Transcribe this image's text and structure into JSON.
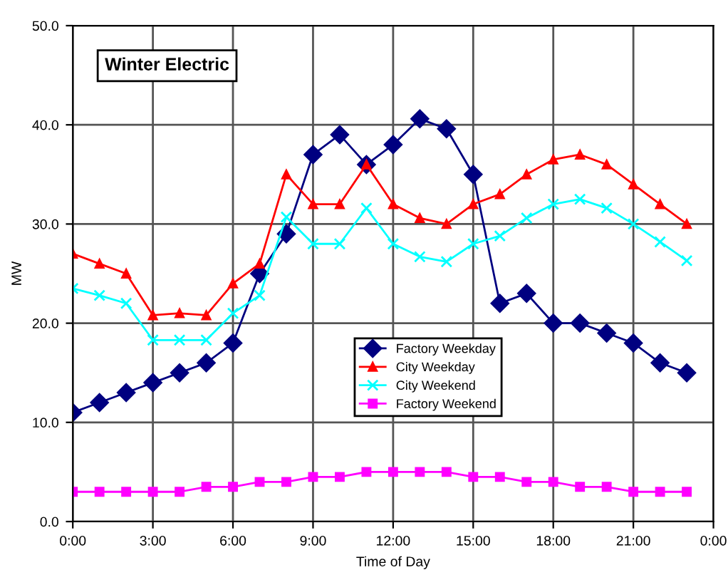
{
  "chart_data": {
    "type": "line",
    "title": "Winter Electric",
    "xlabel": "Time of Day",
    "ylabel": "MW",
    "x": [
      0,
      1,
      2,
      3,
      4,
      5,
      6,
      7,
      8,
      9,
      10,
      11,
      12,
      13,
      14,
      15,
      16,
      17,
      18,
      19,
      20,
      21,
      22,
      23
    ],
    "series": [
      {
        "name": "Factory Weekday",
        "color": "#000080",
        "marker": "diamond",
        "values": [
          11,
          12,
          13,
          14,
          15,
          16,
          18,
          25,
          29,
          37,
          39,
          36,
          38,
          40.6,
          39.6,
          35,
          22,
          23,
          20,
          20,
          19,
          18,
          16,
          15
        ]
      },
      {
        "name": "City Weekday",
        "color": "#ff0000",
        "marker": "triangle",
        "values": [
          27,
          26,
          25,
          20.8,
          21,
          20.8,
          24,
          26,
          35,
          32,
          32,
          36,
          32,
          30.6,
          30,
          32,
          33,
          35,
          36.5,
          37,
          36,
          34,
          32,
          30
        ]
      },
      {
        "name": "City Weekend",
        "color": "#00ffff",
        "marker": "cross",
        "values": [
          23.5,
          22.8,
          22,
          18.3,
          18.3,
          18.3,
          21,
          22.8,
          30.7,
          28,
          28,
          31.6,
          28,
          26.7,
          26.2,
          28,
          28.8,
          30.6,
          32,
          32.5,
          31.6,
          30,
          28.2,
          26.3
        ]
      },
      {
        "name": "Factory Weekend",
        "color": "#ff00ff",
        "marker": "square",
        "values": [
          3,
          3,
          3,
          3,
          3,
          3.5,
          3.5,
          4,
          4,
          4.5,
          4.5,
          5,
          5,
          5,
          5,
          4.5,
          4.5,
          4,
          4,
          3.5,
          3.5,
          3,
          3,
          3
        ]
      }
    ],
    "xlim": [
      0,
      24
    ],
    "xticks": [
      {
        "value": 0,
        "label": "0:00"
      },
      {
        "value": 3,
        "label": "3:00"
      },
      {
        "value": 6,
        "label": "6:00"
      },
      {
        "value": 9,
        "label": "9:00"
      },
      {
        "value": 12,
        "label": "12:00"
      },
      {
        "value": 15,
        "label": "15:00"
      },
      {
        "value": 18,
        "label": "18:00"
      },
      {
        "value": 21,
        "label": "21:00"
      },
      {
        "value": 24,
        "label": "0:00"
      }
    ],
    "ylim": [
      0,
      50
    ],
    "yticks": [
      {
        "value": 0,
        "label": "0.0"
      },
      {
        "value": 10,
        "label": "10.0"
      },
      {
        "value": 20,
        "label": "20.0"
      },
      {
        "value": 30,
        "label": "30.0"
      },
      {
        "value": 40,
        "label": "40.0"
      },
      {
        "value": 50,
        "label": "50.0"
      }
    ],
    "grid": true,
    "legend": "center",
    "line_style": "solid"
  }
}
